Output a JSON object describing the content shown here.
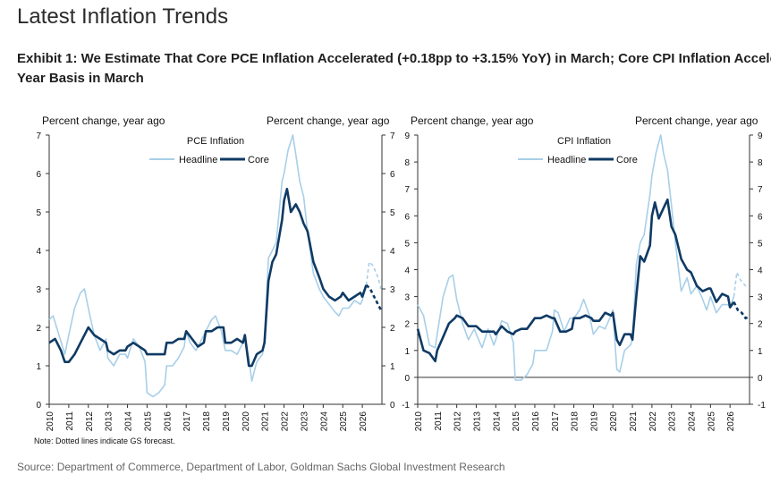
{
  "page": {
    "heading": "Latest Inflation Trends",
    "exhibit_title_line1": "Exhibit 1: We Estimate That Core PCE Inflation Accelerated (+0.18pp to +3.15% YoY) in March; Core CPI Inflation Acceler",
    "exhibit_title_line2": "Year Basis in March",
    "note": "Note: Dotted lines indicate GS forecast.",
    "source": "Source: Department of Commerce, Department of Labor, Goldman Sachs Global Investment Research"
  },
  "colors": {
    "headline": "#a8cfe8",
    "core": "#0f3a64",
    "axis": "#333333"
  },
  "chart_data": [
    {
      "type": "line",
      "title": "PCE Inflation",
      "ylabel_left": "Percent change, year ago",
      "ylabel_right": "Percent change, year ago",
      "ylim": [
        0,
        7
      ],
      "yticks": [
        0,
        1,
        2,
        3,
        4,
        5,
        6,
        7
      ],
      "xlim": [
        2010,
        2027
      ],
      "xticks": [
        "2010",
        "2011",
        "2012",
        "2013",
        "2014",
        "2015",
        "2016",
        "2017",
        "2018",
        "2019",
        "2020",
        "2021",
        "2022",
        "2023",
        "2024",
        "2025",
        "2026"
      ],
      "legend": "top-center",
      "series": [
        {
          "name": "Headline",
          "forecast_from": 2026.2,
          "x": [
            2010,
            2010.2,
            2010.5,
            2010.8,
            2011,
            2011.3,
            2011.6,
            2011.8,
            2012,
            2012.3,
            2012.6,
            2012.9,
            2013,
            2013.3,
            2013.6,
            2013.9,
            2014,
            2014.3,
            2014.6,
            2014.9,
            2015,
            2015.3,
            2015.6,
            2015.9,
            2016,
            2016.3,
            2016.6,
            2016.9,
            2017,
            2017.2,
            2017.5,
            2017.8,
            2018,
            2018.3,
            2018.5,
            2018.8,
            2019,
            2019.3,
            2019.6,
            2019.9,
            2020,
            2020.2,
            2020.35,
            2020.6,
            2020.9,
            2021,
            2021.2,
            2021.4,
            2021.6,
            2021.9,
            2022,
            2022.2,
            2022.45,
            2022.6,
            2022.8,
            2023,
            2023.2,
            2023.5,
            2023.8,
            2024,
            2024.3,
            2024.6,
            2024.8,
            2025,
            2025.3,
            2025.6,
            2025.9,
            2026,
            2026.2,
            2026.35,
            2026.55,
            2026.8,
            2026.95
          ],
          "y": [
            2.2,
            2.3,
            1.8,
            1.3,
            1.8,
            2.5,
            2.9,
            3.0,
            2.5,
            1.8,
            1.4,
            1.7,
            1.2,
            1.0,
            1.3,
            1.3,
            1.2,
            1.7,
            1.5,
            1.1,
            0.3,
            0.2,
            0.3,
            0.5,
            1.0,
            1.0,
            1.2,
            1.5,
            1.9,
            1.6,
            1.4,
            1.7,
            1.9,
            2.2,
            2.3,
            1.9,
            1.4,
            1.4,
            1.3,
            1.6,
            1.7,
            1.2,
            0.6,
            1.1,
            1.3,
            1.7,
            3.8,
            4.0,
            4.2,
            5.8,
            6.0,
            6.6,
            7.0,
            6.5,
            5.8,
            5.4,
            4.5,
            3.4,
            3.0,
            2.8,
            2.6,
            2.4,
            2.3,
            2.5,
            2.5,
            2.7,
            2.6,
            2.7,
            3.1,
            3.7,
            3.6,
            3.3,
            3.0
          ]
        },
        {
          "name": "Core",
          "forecast_from": 2026.2,
          "x": [
            2010,
            2010.3,
            2010.6,
            2010.8,
            2011,
            2011.3,
            2011.6,
            2011.9,
            2012,
            2012.3,
            2012.6,
            2012.9,
            2013,
            2013.3,
            2013.6,
            2013.9,
            2014,
            2014.3,
            2014.6,
            2014.9,
            2015,
            2015.3,
            2015.6,
            2015.9,
            2016,
            2016.3,
            2016.6,
            2016.9,
            2017,
            2017.3,
            2017.6,
            2017.9,
            2018,
            2018.3,
            2018.6,
            2018.9,
            2019,
            2019.3,
            2019.6,
            2019.9,
            2020,
            2020.2,
            2020.35,
            2020.6,
            2020.9,
            2021,
            2021.2,
            2021.4,
            2021.6,
            2021.9,
            2022,
            2022.15,
            2022.35,
            2022.6,
            2022.8,
            2023,
            2023.2,
            2023.5,
            2023.8,
            2024,
            2024.3,
            2024.6,
            2024.9,
            2025,
            2025.3,
            2025.6,
            2025.9,
            2026,
            2026.2,
            2026.4,
            2026.6,
            2026.8,
            2026.95
          ],
          "y": [
            1.6,
            1.7,
            1.4,
            1.1,
            1.1,
            1.3,
            1.6,
            1.9,
            2.0,
            1.8,
            1.7,
            1.6,
            1.4,
            1.3,
            1.4,
            1.4,
            1.5,
            1.6,
            1.5,
            1.4,
            1.3,
            1.3,
            1.3,
            1.3,
            1.6,
            1.6,
            1.7,
            1.7,
            1.9,
            1.7,
            1.5,
            1.6,
            1.9,
            1.9,
            2.0,
            2.0,
            1.6,
            1.6,
            1.7,
            1.6,
            1.8,
            1.0,
            1.0,
            1.3,
            1.4,
            1.6,
            3.2,
            3.7,
            3.9,
            4.8,
            5.3,
            5.6,
            5.0,
            5.2,
            5.0,
            4.7,
            4.5,
            3.7,
            3.3,
            3.0,
            2.8,
            2.7,
            2.8,
            2.9,
            2.7,
            2.8,
            2.9,
            2.8,
            3.1,
            3.0,
            2.8,
            2.6,
            2.45
          ]
        }
      ]
    },
    {
      "type": "line",
      "title": "CPI Inflation",
      "ylabel_left": "Percent change, year ago",
      "ylabel_right": "Percent change, year ago",
      "ylim": [
        -1,
        9
      ],
      "yticks": [
        -1,
        0,
        1,
        2,
        3,
        4,
        5,
        6,
        7,
        8,
        9
      ],
      "xlim": [
        2010,
        2027
      ],
      "xticks": [
        "2010",
        "2011",
        "2012",
        "2013",
        "2014",
        "2015",
        "2016",
        "2017",
        "2018",
        "2019",
        "2020",
        "2021",
        "2022",
        "2023",
        "2024",
        "2025",
        "2026"
      ],
      "legend": "top-center",
      "series": [
        {
          "name": "Headline",
          "forecast_from": 2026.2,
          "x": [
            2010,
            2010.3,
            2010.6,
            2010.9,
            2011,
            2011.3,
            2011.6,
            2011.8,
            2012,
            2012.3,
            2012.6,
            2012.9,
            2013,
            2013.3,
            2013.6,
            2013.9,
            2014,
            2014.3,
            2014.6,
            2014.9,
            2015,
            2015.3,
            2015.6,
            2015.9,
            2016,
            2016.3,
            2016.6,
            2016.9,
            2017,
            2017.2,
            2017.5,
            2017.8,
            2018,
            2018.3,
            2018.5,
            2018.8,
            2019,
            2019.3,
            2019.6,
            2019.9,
            2020,
            2020.2,
            2020.35,
            2020.6,
            2020.9,
            2021,
            2021.2,
            2021.4,
            2021.6,
            2021.9,
            2022,
            2022.2,
            2022.45,
            2022.6,
            2022.8,
            2023,
            2023.2,
            2023.5,
            2023.8,
            2024,
            2024.3,
            2024.6,
            2024.8,
            2025,
            2025.3,
            2025.6,
            2025.9,
            2026,
            2026.2,
            2026.35,
            2026.55,
            2026.8,
            2026.95
          ],
          "y": [
            2.7,
            2.3,
            1.2,
            1.1,
            1.6,
            3.0,
            3.7,
            3.8,
            2.9,
            2.0,
            1.4,
            1.8,
            1.6,
            1.1,
            1.8,
            1.2,
            1.4,
            2.1,
            2.0,
            1.3,
            -0.1,
            -0.1,
            0.1,
            0.5,
            1.0,
            1.0,
            1.0,
            1.7,
            2.5,
            2.4,
            1.7,
            2.2,
            2.2,
            2.5,
            2.9,
            2.3,
            1.6,
            1.9,
            1.8,
            2.3,
            2.5,
            0.3,
            0.2,
            1.0,
            1.2,
            1.4,
            4.2,
            5.0,
            5.3,
            6.8,
            7.5,
            8.3,
            9.0,
            8.3,
            7.7,
            6.4,
            5.0,
            3.2,
            3.7,
            3.1,
            3.4,
            2.9,
            2.5,
            3.0,
            2.4,
            2.7,
            2.7,
            2.6,
            3.0,
            3.9,
            3.6,
            3.4,
            3.4
          ]
        },
        {
          "name": "Core",
          "forecast_from": 2026.2,
          "x": [
            2010,
            2010.3,
            2010.6,
            2010.9,
            2011,
            2011.3,
            2011.6,
            2011.9,
            2012,
            2012.3,
            2012.6,
            2012.9,
            2013,
            2013.3,
            2013.6,
            2013.9,
            2014,
            2014.3,
            2014.6,
            2014.9,
            2015,
            2015.3,
            2015.6,
            2015.9,
            2016,
            2016.3,
            2016.6,
            2016.9,
            2017,
            2017.3,
            2017.6,
            2017.9,
            2018,
            2018.3,
            2018.6,
            2018.9,
            2019,
            2019.3,
            2019.6,
            2019.9,
            2020,
            2020.2,
            2020.35,
            2020.6,
            2020.9,
            2021,
            2021.2,
            2021.4,
            2021.6,
            2021.9,
            2022,
            2022.15,
            2022.35,
            2022.6,
            2022.8,
            2023,
            2023.2,
            2023.5,
            2023.8,
            2024,
            2024.3,
            2024.6,
            2024.9,
            2025,
            2025.3,
            2025.6,
            2025.9,
            2026,
            2026.2,
            2026.4,
            2026.6,
            2026.8,
            2026.95
          ],
          "y": [
            1.8,
            1.0,
            0.9,
            0.6,
            1.0,
            1.5,
            2.0,
            2.2,
            2.3,
            2.2,
            1.9,
            1.9,
            1.9,
            1.7,
            1.7,
            1.7,
            1.6,
            1.9,
            1.7,
            1.6,
            1.7,
            1.8,
            1.8,
            2.1,
            2.2,
            2.2,
            2.3,
            2.2,
            2.2,
            1.7,
            1.7,
            1.8,
            2.2,
            2.2,
            2.3,
            2.2,
            2.1,
            2.1,
            2.4,
            2.3,
            2.4,
            1.4,
            1.2,
            1.6,
            1.6,
            1.4,
            3.0,
            4.5,
            4.3,
            4.9,
            6.0,
            6.5,
            5.9,
            6.3,
            6.6,
            5.6,
            5.3,
            4.4,
            4.0,
            3.9,
            3.4,
            3.2,
            3.3,
            3.3,
            2.8,
            3.1,
            3.0,
            2.6,
            2.8,
            2.5,
            2.4,
            2.2,
            2.25
          ]
        }
      ]
    }
  ]
}
